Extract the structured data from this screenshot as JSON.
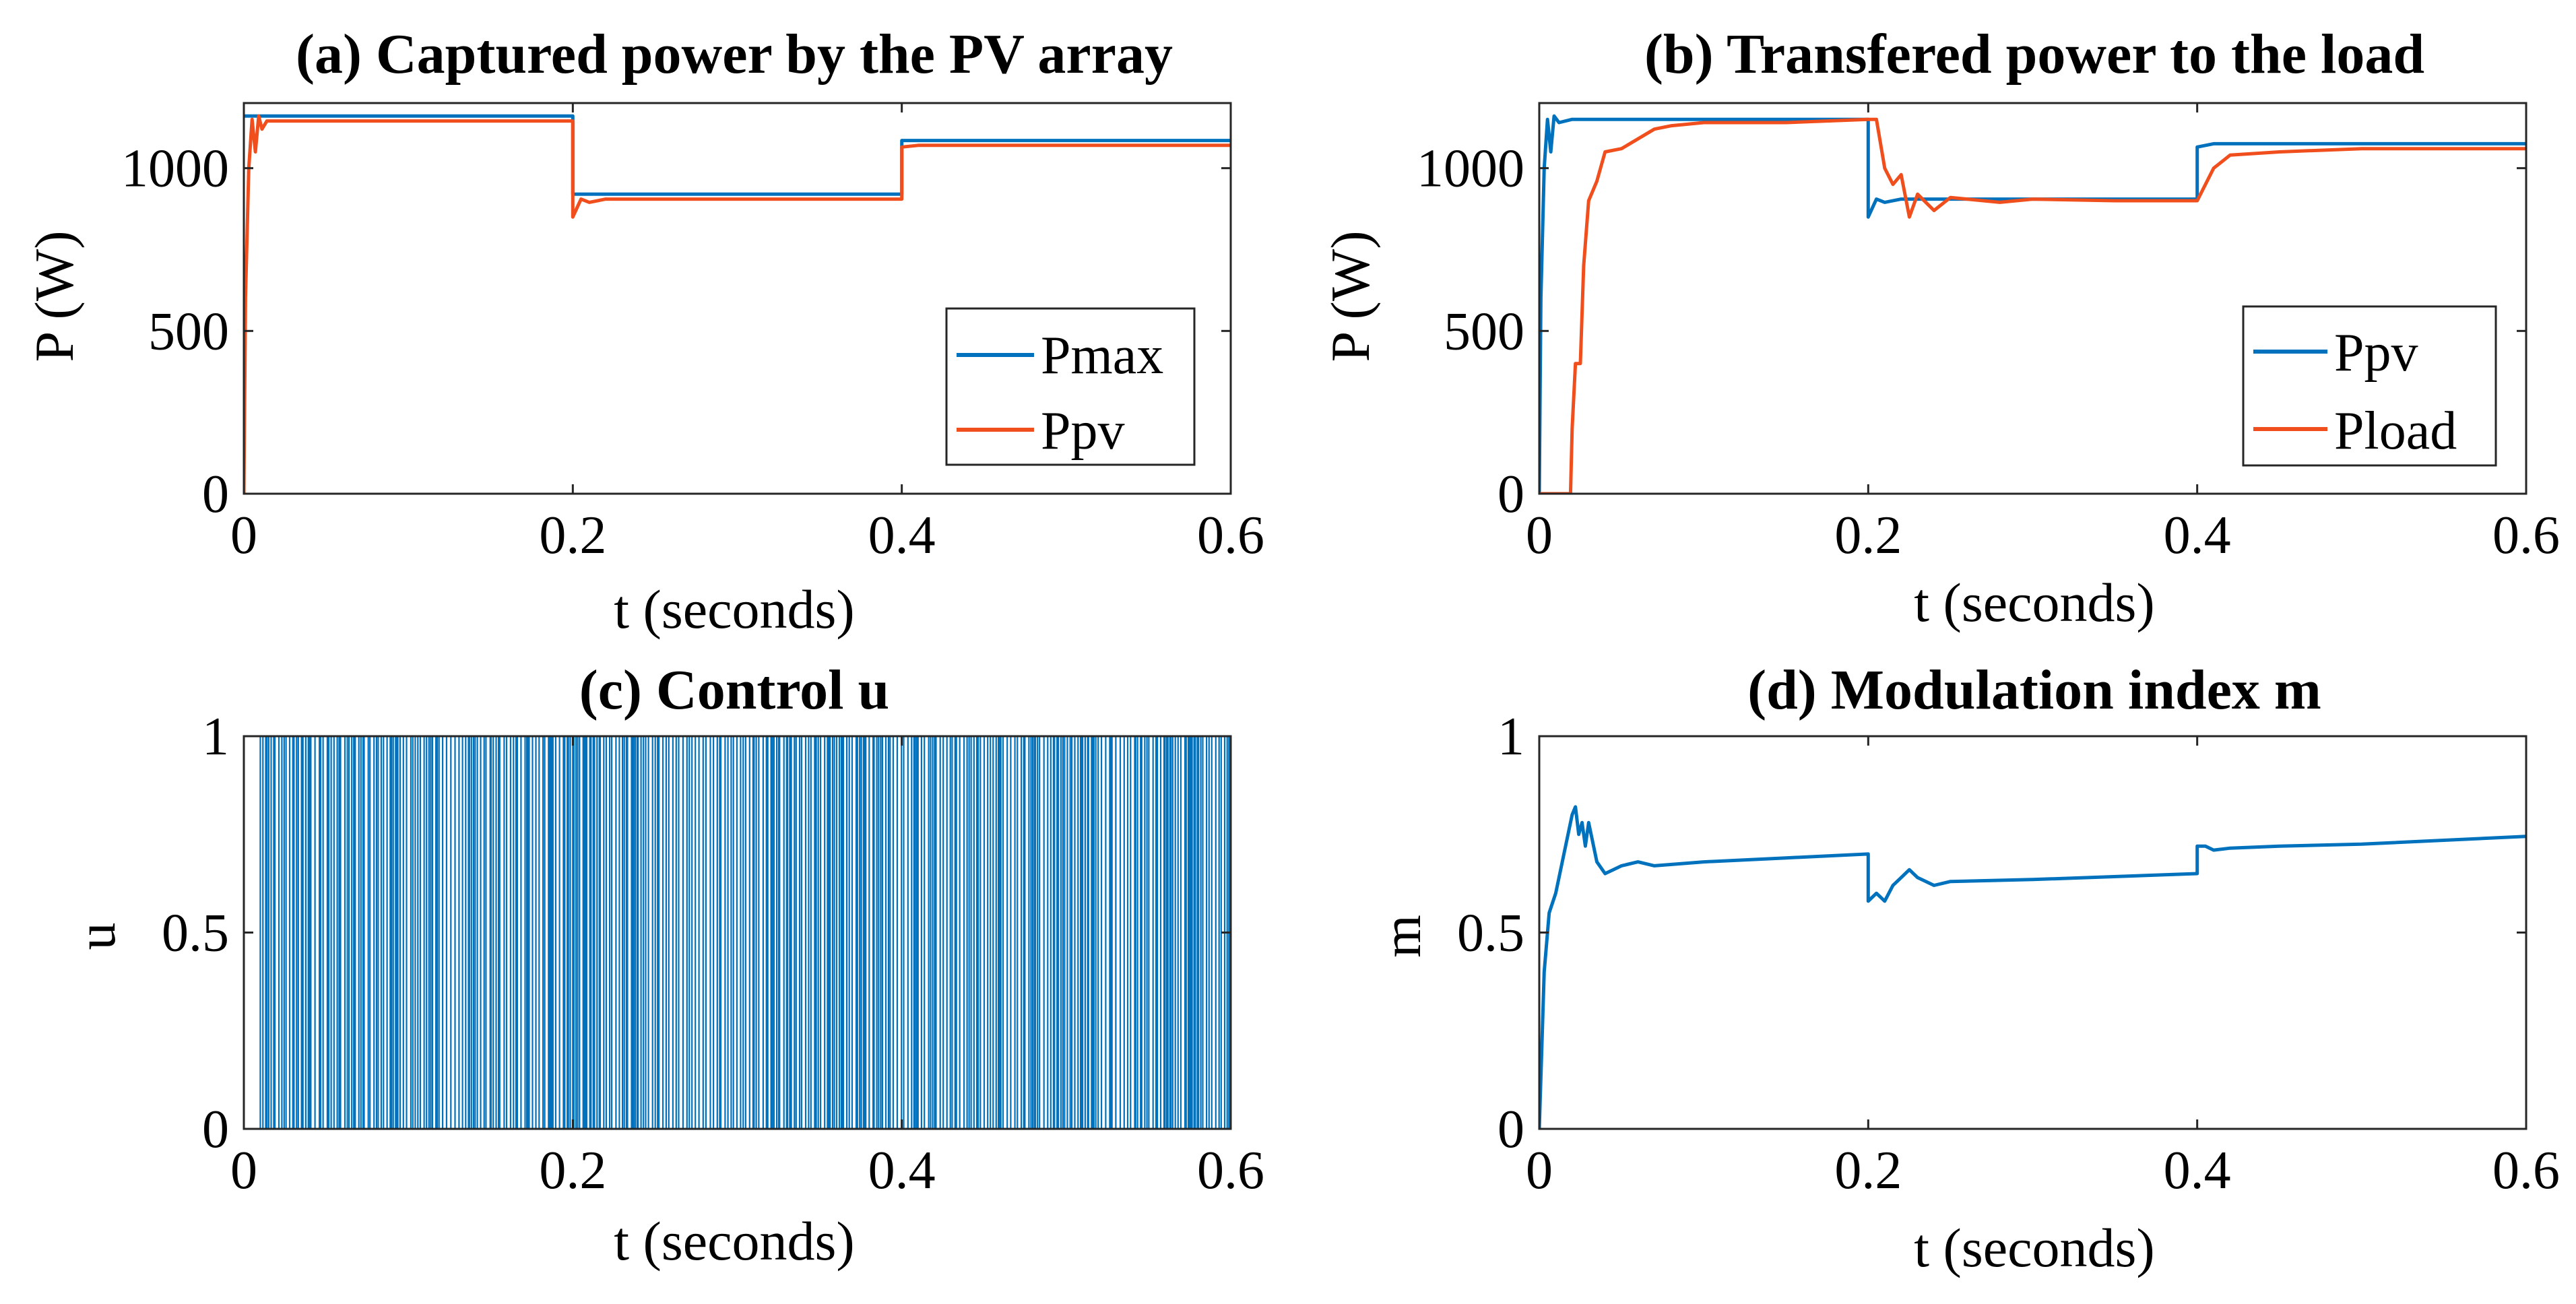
{
  "colors": {
    "blue": "#0072BD",
    "orange": "#F04E1C",
    "axis": "#262626"
  },
  "chart_data": [
    {
      "id": "a",
      "type": "line",
      "title": "(a) Captured power by the PV array",
      "xlabel": "t (seconds)",
      "ylabel": "P (W)",
      "xlim": [
        0,
        0.6
      ],
      "ylim": [
        0,
        1200
      ],
      "xticks": [
        0,
        0.2,
        0.4,
        0.6
      ],
      "xtick_labels": [
        "0",
        "0.2",
        "0.4",
        "0.6"
      ],
      "yticks": [
        0,
        500,
        1000
      ],
      "ytick_labels": [
        "0",
        "500",
        "1000"
      ],
      "legend_position": "bottom-right",
      "series": [
        {
          "name": "Pmax",
          "color": "#0072BD",
          "x": [
            0,
            0.2,
            0.2,
            0.4,
            0.4,
            0.6
          ],
          "y": [
            1160,
            1160,
            920,
            920,
            1085,
            1085
          ]
        },
        {
          "name": "Ppv",
          "color": "#F04E1C",
          "x": [
            0,
            0.001,
            0.003,
            0.005,
            0.007,
            0.009,
            0.011,
            0.014,
            0.02,
            0.2,
            0.2,
            0.205,
            0.21,
            0.22,
            0.4,
            0.4,
            0.41,
            0.6
          ],
          "y": [
            0,
            600,
            1000,
            1150,
            1050,
            1160,
            1120,
            1145,
            1145,
            1145,
            850,
            905,
            895,
            905,
            905,
            1065,
            1070,
            1070
          ]
        }
      ]
    },
    {
      "id": "b",
      "type": "line",
      "title": "(b) Transfered power to the load",
      "xlabel": "t (seconds)",
      "ylabel": "P (W)",
      "xlim": [
        0,
        0.6
      ],
      "ylim": [
        0,
        1200
      ],
      "xticks": [
        0,
        0.2,
        0.4,
        0.6
      ],
      "xtick_labels": [
        "0",
        "0.2",
        "0.4",
        "0.6"
      ],
      "yticks": [
        0,
        500,
        1000
      ],
      "ytick_labels": [
        "0",
        "500",
        "1000"
      ],
      "legend_position": "bottom-right",
      "series": [
        {
          "name": "Ppv",
          "color": "#0072BD",
          "x": [
            0,
            0.001,
            0.003,
            0.005,
            0.007,
            0.009,
            0.012,
            0.02,
            0.2,
            0.2,
            0.205,
            0.21,
            0.22,
            0.4,
            0.4,
            0.41,
            0.6
          ],
          "y": [
            0,
            600,
            1000,
            1150,
            1050,
            1160,
            1140,
            1150,
            1150,
            850,
            905,
            895,
            905,
            905,
            1065,
            1075,
            1075
          ]
        },
        {
          "name": "Pload",
          "color": "#F04E1C",
          "x": [
            0,
            0.019,
            0.02,
            0.022,
            0.025,
            0.027,
            0.03,
            0.035,
            0.04,
            0.05,
            0.06,
            0.07,
            0.08,
            0.1,
            0.15,
            0.2,
            0.205,
            0.21,
            0.215,
            0.22,
            0.225,
            0.23,
            0.24,
            0.25,
            0.28,
            0.3,
            0.35,
            0.4,
            0.41,
            0.42,
            0.45,
            0.5,
            0.6
          ],
          "y": [
            0,
            0,
            200,
            400,
            400,
            700,
            900,
            960,
            1050,
            1060,
            1090,
            1120,
            1130,
            1140,
            1140,
            1150,
            1150,
            1000,
            950,
            980,
            850,
            920,
            870,
            910,
            895,
            905,
            900,
            900,
            1000,
            1040,
            1050,
            1060,
            1060
          ]
        }
      ]
    },
    {
      "id": "c",
      "type": "line",
      "title": "(c) Control u",
      "xlabel": "t (seconds)",
      "ylabel": "u",
      "xlim": [
        0,
        0.6
      ],
      "ylim": [
        0,
        1
      ],
      "xticks": [
        0,
        0.2,
        0.4,
        0.6
      ],
      "xtick_labels": [
        "0",
        "0.2",
        "0.4",
        "0.6"
      ],
      "yticks": [
        0,
        0.5,
        1
      ],
      "ytick_labels": [
        "0",
        "0.5",
        "1"
      ],
      "series": [
        {
          "name": "u",
          "color": "#0072BD",
          "description_values": "binary switching signal",
          "levels": [
            0,
            1
          ],
          "switching_start": 0.01,
          "switching_end": 0.6
        }
      ]
    },
    {
      "id": "d",
      "type": "line",
      "title": "(d) Modulation index m",
      "xlabel": "t (seconds)",
      "ylabel": "m",
      "xlim": [
        0,
        0.6
      ],
      "ylim": [
        0,
        1
      ],
      "xticks": [
        0,
        0.2,
        0.4,
        0.6
      ],
      "xtick_labels": [
        "0",
        "0.2",
        "0.4",
        "0.6"
      ],
      "yticks": [
        0,
        0.5,
        1
      ],
      "ytick_labels": [
        "0",
        "0.5",
        "1"
      ],
      "series": [
        {
          "name": "m",
          "color": "#0072BD",
          "x": [
            0,
            0.003,
            0.006,
            0.01,
            0.015,
            0.02,
            0.022,
            0.024,
            0.026,
            0.028,
            0.03,
            0.035,
            0.04,
            0.045,
            0.05,
            0.06,
            0.07,
            0.1,
            0.15,
            0.2,
            0.2,
            0.205,
            0.21,
            0.215,
            0.22,
            0.225,
            0.23,
            0.24,
            0.25,
            0.3,
            0.4,
            0.4,
            0.405,
            0.41,
            0.42,
            0.45,
            0.5,
            0.6
          ],
          "y": [
            0,
            0.4,
            0.55,
            0.6,
            0.7,
            0.8,
            0.82,
            0.75,
            0.78,
            0.72,
            0.78,
            0.68,
            0.65,
            0.66,
            0.67,
            0.68,
            0.67,
            0.68,
            0.69,
            0.7,
            0.58,
            0.6,
            0.58,
            0.62,
            0.64,
            0.66,
            0.64,
            0.62,
            0.63,
            0.635,
            0.65,
            0.72,
            0.72,
            0.71,
            0.715,
            0.72,
            0.725,
            0.745
          ]
        }
      ]
    }
  ]
}
